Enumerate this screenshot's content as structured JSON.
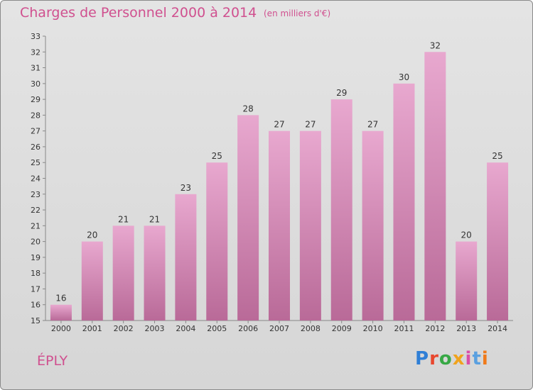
{
  "title": "Charges de Personnel 2000 à 2014",
  "subtitle": "(en milliers d'€)",
  "commune": "ÉPLY",
  "logo": {
    "text": "Proxiti",
    "colors": [
      "#2f7fd6",
      "#e8472e",
      "#37a845",
      "#f0a31d",
      "#d94fa8",
      "#5aa0e0",
      "#f07a1a"
    ]
  },
  "colors": {
    "bar_top": "#e8a8cf",
    "bar_bottom": "#b96a98",
    "accent": "#d0508f"
  },
  "chart_data": {
    "type": "bar",
    "title": "Charges de Personnel 2000 à 2014",
    "subtitle": "(en milliers d'€)",
    "xlabel": "",
    "ylabel": "",
    "categories": [
      "2000",
      "2001",
      "2002",
      "2003",
      "2004",
      "2005",
      "2006",
      "2007",
      "2008",
      "2009",
      "2010",
      "2011",
      "2012",
      "2013",
      "2014"
    ],
    "values": [
      16,
      20,
      21,
      21,
      23,
      25,
      28,
      27,
      27,
      29,
      27,
      30,
      32,
      20,
      25
    ],
    "ylim": [
      15,
      33
    ],
    "yticks": [
      15,
      16,
      17,
      18,
      19,
      20,
      21,
      22,
      23,
      24,
      25,
      26,
      27,
      28,
      29,
      30,
      31,
      32,
      33
    ],
    "grid": false,
    "legend": "none"
  }
}
